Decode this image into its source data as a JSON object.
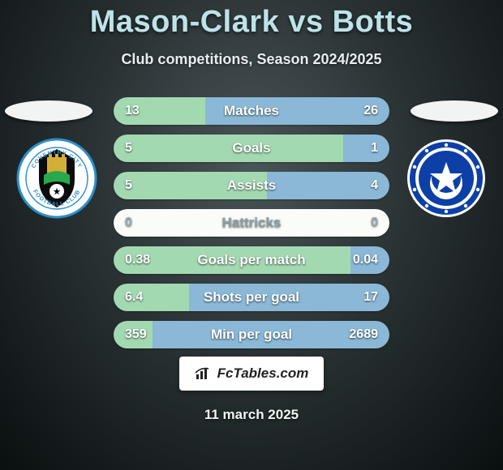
{
  "title": "Mason-Clark vs Botts",
  "subtitle": "Club competitions, Season 2024/2025",
  "colors": {
    "left_primary": "#a3d9b1",
    "left_secondary": "#c8e6c9",
    "right_primary": "#8ab8d6",
    "right_secondary": "#b2d0e4",
    "bar_bg": "#fafcfa"
  },
  "bars": [
    {
      "label": "Matches",
      "left_val": "13",
      "right_val": "26",
      "left_num": 13,
      "right_num": 26
    },
    {
      "label": "Goals",
      "left_val": "5",
      "right_val": "1",
      "left_num": 5,
      "right_num": 1
    },
    {
      "label": "Assists",
      "left_val": "5",
      "right_val": "4",
      "left_num": 5,
      "right_num": 4
    },
    {
      "label": "Hattricks",
      "left_val": "0",
      "right_val": "0",
      "left_num": 0,
      "right_num": 0
    },
    {
      "label": "Goals per match",
      "left_val": "0.38",
      "right_val": "0.04",
      "left_num": 0.38,
      "right_num": 0.04
    },
    {
      "label": "Shots per goal",
      "left_val": "6.4",
      "right_val": "17",
      "left_num": 6.4,
      "right_num": 17
    },
    {
      "label": "Min per goal",
      "left_val": "359",
      "right_val": "2689",
      "left_num": 359,
      "right_num": 2689
    }
  ],
  "footer_brand": "FcTables.com",
  "footer_date": "11 march 2025",
  "crests": {
    "left_name": "Coventry City",
    "right_name": "Portsmouth",
    "left_colors": {
      "outer": "#ffffff",
      "ring": "#2b90c8",
      "inner1": "#0a0a0a",
      "inner2": "#d4af37",
      "accent": "#2aa84e",
      "text": "#2b90c8"
    },
    "right_colors": {
      "outer": "#ffffff",
      "ring": "#0d3fa6",
      "star": "#ffffff",
      "inner": "#0d3fa6"
    }
  }
}
